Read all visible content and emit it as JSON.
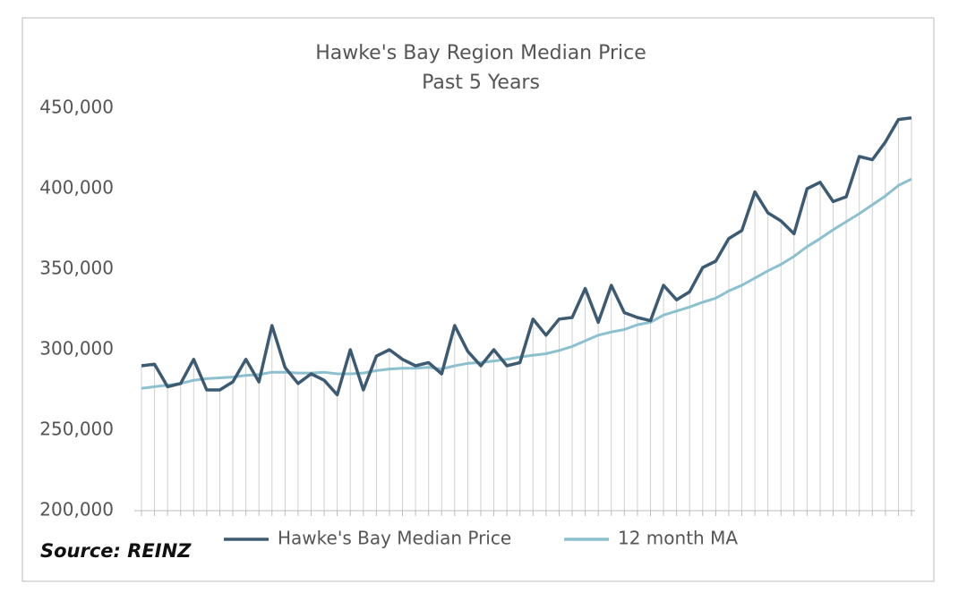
{
  "chart_data": {
    "type": "line",
    "title": "Hawke's Bay Region Median Price",
    "subtitle": "Past 5 Years",
    "source": "Source: REINZ",
    "categories": [
      null,
      null,
      null,
      null,
      null,
      null,
      null,
      null,
      null,
      null,
      null,
      null,
      null,
      null,
      null,
      null,
      null,
      null,
      null,
      null,
      null,
      null,
      null,
      null,
      null,
      null,
      null,
      null,
      null,
      null,
      null,
      null,
      null,
      null,
      null,
      null,
      null,
      null,
      null,
      null,
      null,
      null,
      null,
      null,
      null,
      null,
      null,
      null,
      null,
      null,
      null,
      null,
      null,
      null,
      null,
      null,
      null,
      null,
      null,
      null
    ],
    "series": [
      {
        "name": "Hawke's Bay Median Price",
        "color": "#3d5a73",
        "values": [
          290000,
          291000,
          277000,
          279000,
          294000,
          275000,
          275000,
          280000,
          294000,
          280000,
          315000,
          289000,
          279000,
          285000,
          281000,
          272000,
          300000,
          275000,
          296000,
          300000,
          294000,
          290000,
          292000,
          285000,
          315000,
          299000,
          290000,
          300000,
          290000,
          292000,
          319000,
          309000,
          319000,
          320000,
          338000,
          317000,
          340000,
          323000,
          320000,
          318000,
          340000,
          331000,
          336000,
          351000,
          355000,
          369000,
          374000,
          398000,
          385000,
          380000,
          372000,
          400000,
          404000,
          392000,
          395000,
          420000,
          418000,
          429000,
          443000,
          444000
        ]
      },
      {
        "name": "12 month MA",
        "color": "#8cc0cf",
        "values": [
          276000,
          277000,
          278000,
          279000,
          281000,
          282000,
          282500,
          283000,
          284000,
          284500,
          286000,
          286000,
          285500,
          285500,
          286000,
          285000,
          285000,
          285500,
          287000,
          288000,
          288500,
          288500,
          289000,
          288000,
          290000,
          291500,
          292000,
          293000,
          294000,
          295500,
          296500,
          297500,
          299500,
          302000,
          305500,
          309000,
          311000,
          312500,
          315500,
          317000,
          321500,
          324000,
          326500,
          329500,
          332000,
          336500,
          340000,
          344500,
          349000,
          353000,
          358000,
          364000,
          369000,
          374500,
          379500,
          384500,
          390000,
          395500,
          402000,
          406000
        ]
      }
    ],
    "ylim": [
      200000,
      450000
    ],
    "yticks": [
      {
        "value": 200000,
        "label": "200,000"
      },
      {
        "value": 250000,
        "label": "250,000"
      },
      {
        "value": 300000,
        "label": "300,000"
      },
      {
        "value": 350000,
        "label": "350,000"
      },
      {
        "value": 400000,
        "label": "400,000"
      },
      {
        "value": 450000,
        "label": "450,000"
      }
    ],
    "drop_lines": true,
    "legend": "bottom"
  }
}
